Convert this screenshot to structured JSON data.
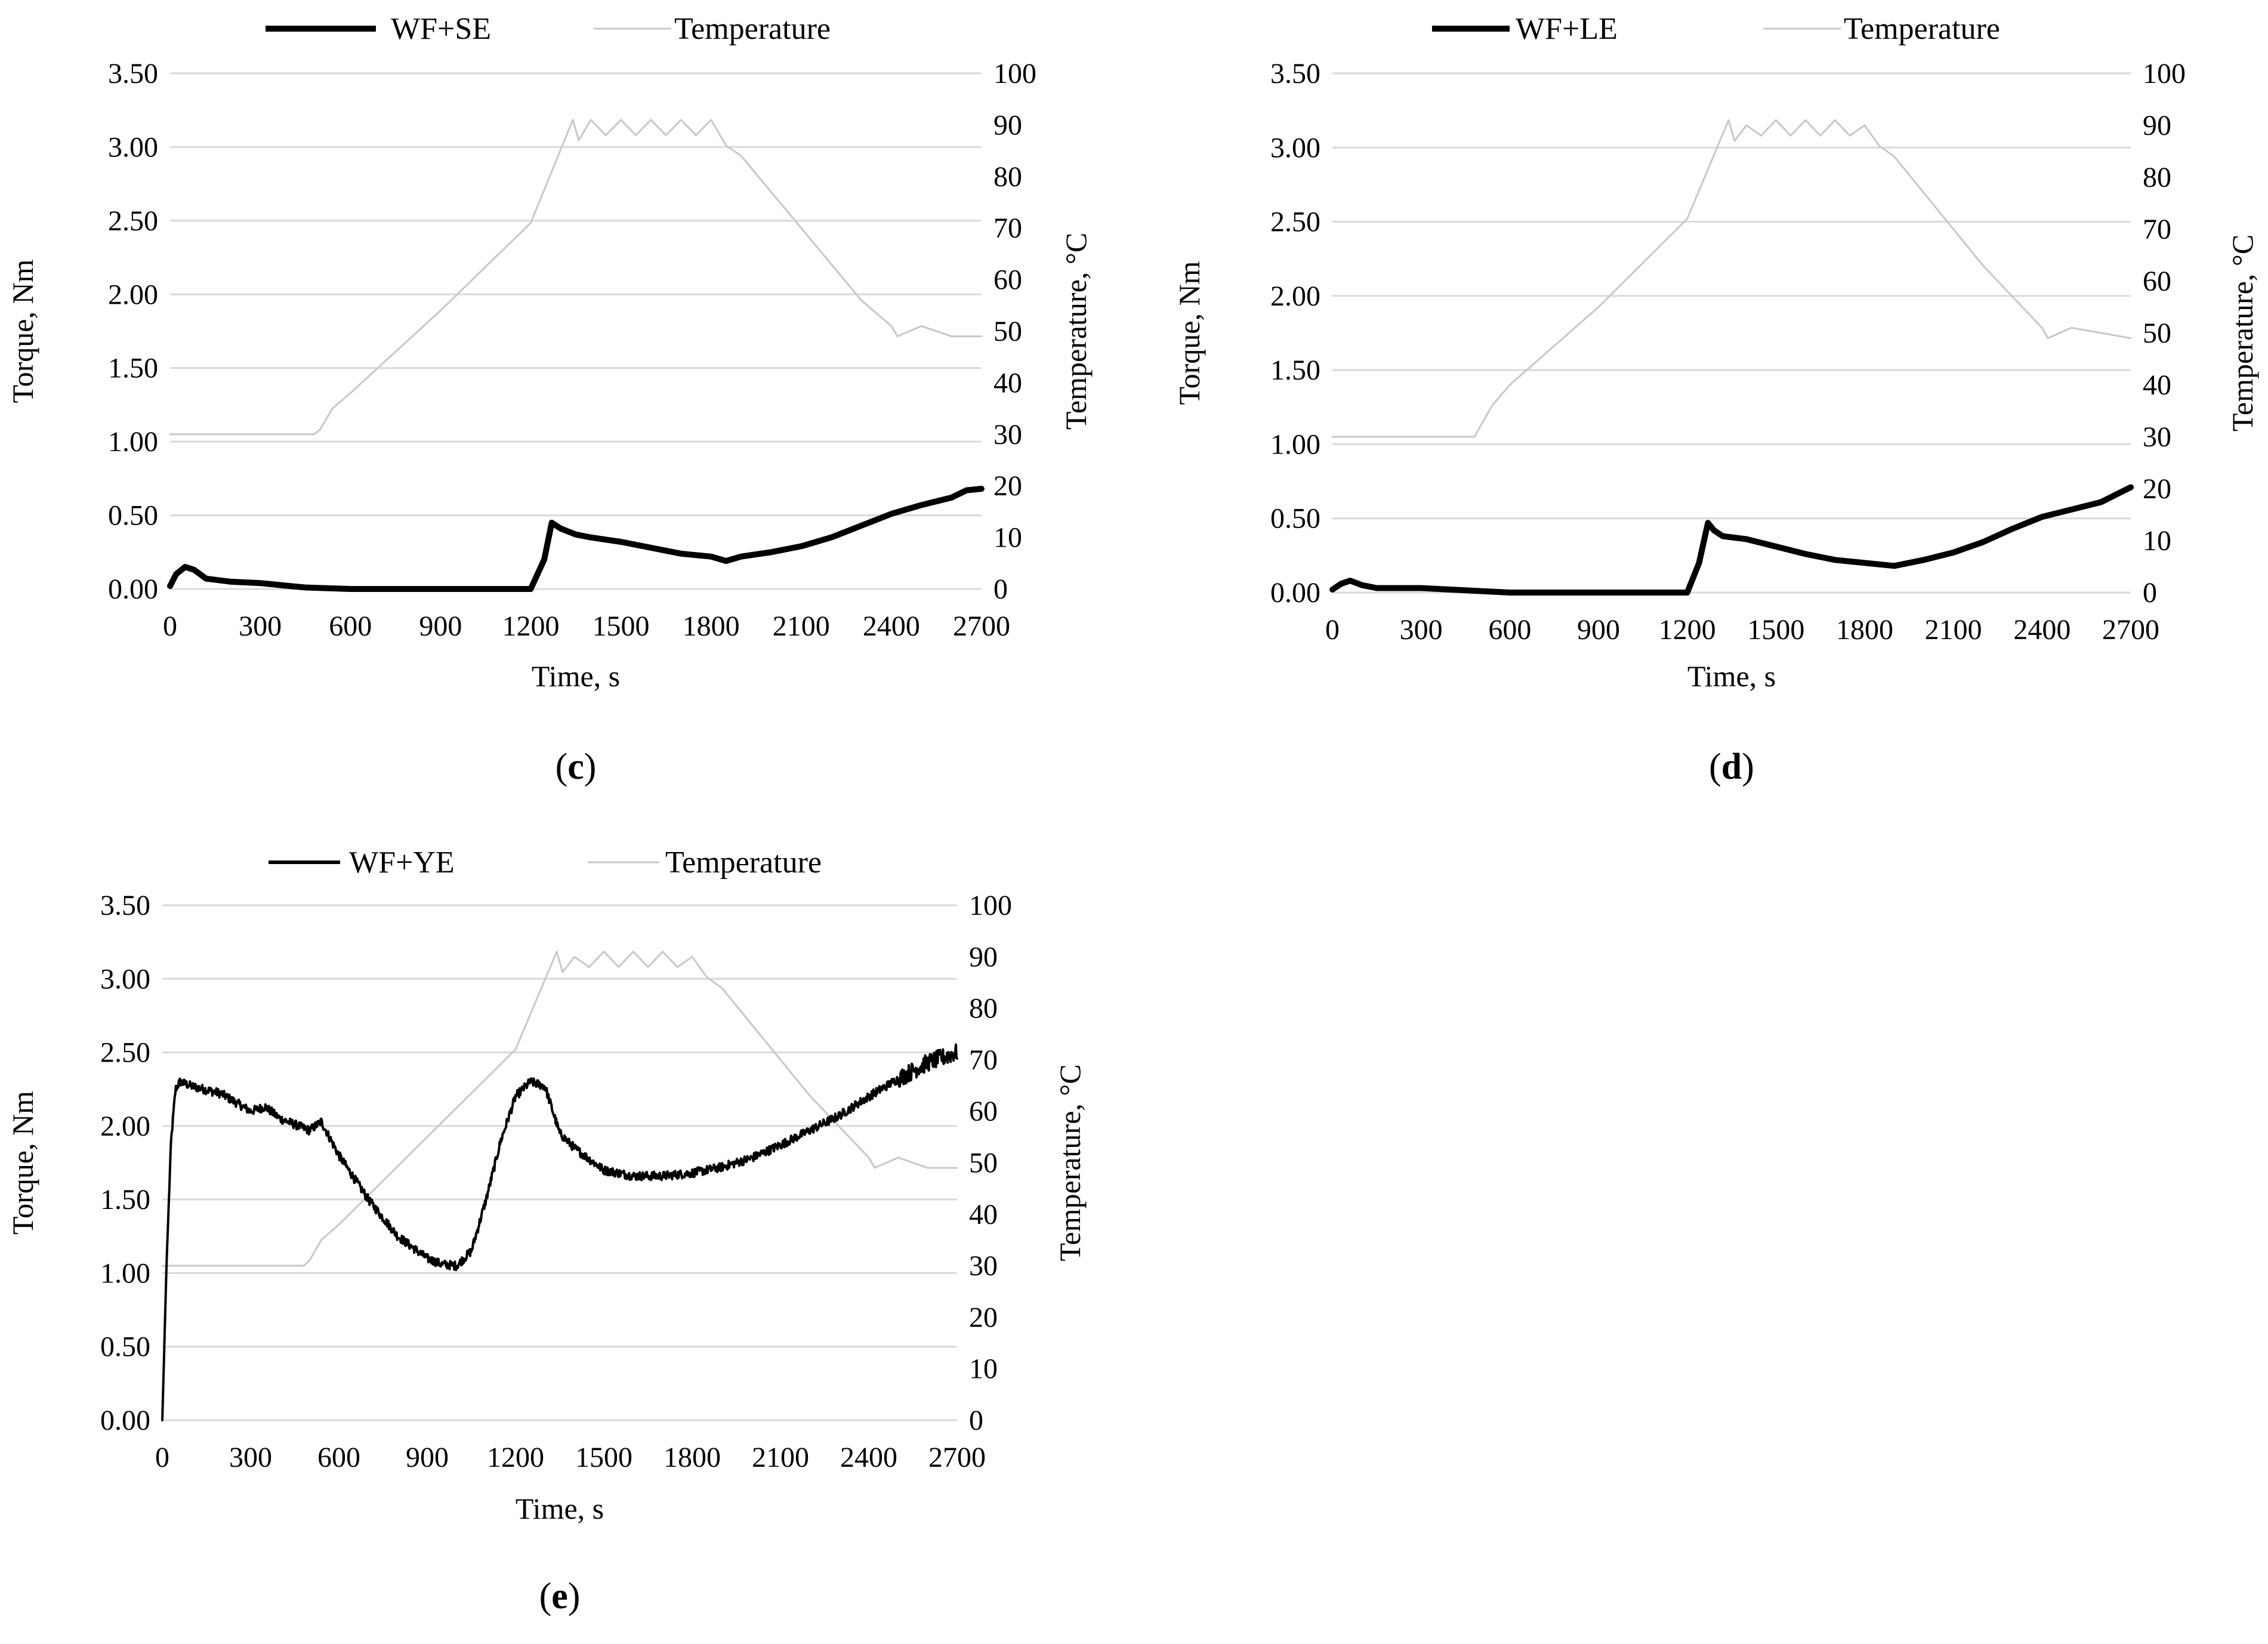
{
  "colors": {
    "torque": "#000000",
    "temperature": "#c8c8c8",
    "grid": "#d9d9d9"
  },
  "chart_data": [
    {
      "type": "line",
      "panel_label": "c",
      "title": "",
      "xlabel": "Time, s",
      "ylabel": "Torque, Nm",
      "y2label": "Temperature, °C",
      "xlim": [
        0,
        2700
      ],
      "ylim": [
        0,
        3.5
      ],
      "y2lim": [
        0,
        100
      ],
      "x_ticks": [
        "0",
        "300",
        "600",
        "900",
        "1200",
        "1500",
        "1800",
        "2100",
        "2400",
        "2700"
      ],
      "y_ticks": [
        "0.00",
        "0.50",
        "1.00",
        "1.50",
        "2.00",
        "2.50",
        "3.00",
        "3.50"
      ],
      "y2_ticks": [
        "0",
        "10",
        "20",
        "30",
        "40",
        "50",
        "60",
        "70",
        "80",
        "90",
        "100"
      ],
      "grid": "horizontal",
      "legend_position": "top-center",
      "series": [
        {
          "name": "WF+SE",
          "axis": "left",
          "style": "thick",
          "x": [
            0,
            20,
            50,
            80,
            120,
            200,
            300,
            400,
            450,
            600,
            900,
            1200,
            1245,
            1270,
            1300,
            1350,
            1400,
            1500,
            1600,
            1700,
            1800,
            1850,
            1900,
            2000,
            2100,
            2200,
            2300,
            2400,
            2500,
            2600,
            2650,
            2700
          ],
          "y": [
            0.02,
            0.1,
            0.15,
            0.13,
            0.07,
            0.05,
            0.04,
            0.02,
            0.01,
            0.0,
            0.0,
            0.0,
            0.2,
            0.45,
            0.41,
            0.37,
            0.35,
            0.32,
            0.28,
            0.24,
            0.22,
            0.19,
            0.22,
            0.25,
            0.29,
            0.35,
            0.43,
            0.51,
            0.57,
            0.62,
            0.67,
            0.68
          ]
        },
        {
          "name": "Temperature",
          "axis": "right",
          "style": "thin",
          "x": [
            0,
            100,
            200,
            300,
            400,
            480,
            500,
            540,
            600,
            900,
            1200,
            1340,
            1360,
            1400,
            1450,
            1500,
            1550,
            1600,
            1650,
            1700,
            1750,
            1800,
            1850,
            1900,
            2000,
            2100,
            2200,
            2300,
            2400,
            2420,
            2500,
            2600,
            2700
          ],
          "y": [
            30,
            30,
            30,
            30,
            30,
            30,
            31,
            35,
            38,
            54,
            71,
            91,
            87,
            91,
            88,
            91,
            88,
            91,
            88,
            91,
            88,
            91,
            86,
            84,
            77,
            70,
            63,
            56,
            51,
            49,
            51,
            49,
            49
          ]
        }
      ]
    },
    {
      "type": "line",
      "panel_label": "d",
      "title": "",
      "xlabel": "Time, s",
      "ylabel": "Torque, Nm",
      "y2label": "Temperature, °C",
      "xlim": [
        0,
        2700
      ],
      "ylim": [
        0,
        3.5
      ],
      "y2lim": [
        0,
        100
      ],
      "x_ticks": [
        "0",
        "300",
        "600",
        "900",
        "1200",
        "1500",
        "1800",
        "2100",
        "2400",
        "2700"
      ],
      "y_ticks": [
        "0.00",
        "0.50",
        "1.00",
        "1.50",
        "2.00",
        "2.50",
        "3.00",
        "3.50"
      ],
      "y2_ticks": [
        "0",
        "10",
        "20",
        "30",
        "40",
        "50",
        "60",
        "70",
        "80",
        "90",
        "100"
      ],
      "grid": "horizontal",
      "legend_position": "top-center",
      "series": [
        {
          "name": "WF+LE",
          "axis": "left",
          "style": "thick",
          "x": [
            0,
            30,
            60,
            100,
            150,
            300,
            400,
            500,
            600,
            900,
            1200,
            1240,
            1270,
            1290,
            1320,
            1400,
            1500,
            1600,
            1700,
            1800,
            1900,
            2000,
            2100,
            2200,
            2300,
            2400,
            2500,
            2600,
            2650,
            2700
          ],
          "y": [
            0.02,
            0.06,
            0.08,
            0.05,
            0.03,
            0.03,
            0.02,
            0.01,
            0.0,
            0.0,
            0.0,
            0.2,
            0.47,
            0.42,
            0.38,
            0.36,
            0.31,
            0.26,
            0.22,
            0.2,
            0.18,
            0.22,
            0.27,
            0.34,
            0.43,
            0.51,
            0.56,
            0.61,
            0.66,
            0.71
          ]
        },
        {
          "name": "Temperature",
          "axis": "right",
          "style": "thin",
          "x": [
            0,
            100,
            200,
            300,
            400,
            480,
            500,
            540,
            600,
            900,
            1200,
            1340,
            1360,
            1400,
            1450,
            1500,
            1550,
            1600,
            1650,
            1700,
            1750,
            1800,
            1850,
            1900,
            2000,
            2100,
            2200,
            2300,
            2400,
            2420,
            2500,
            2600,
            2700
          ],
          "y": [
            30,
            30,
            30,
            30,
            30,
            30,
            32,
            36,
            40,
            55,
            72,
            91,
            87,
            90,
            88,
            91,
            88,
            91,
            88,
            91,
            88,
            90,
            86,
            84,
            77,
            70,
            63,
            57,
            51,
            49,
            51,
            50,
            49
          ]
        }
      ]
    },
    {
      "type": "line",
      "panel_label": "e",
      "title": "",
      "xlabel": "Time, s",
      "ylabel": "Torque, Nm",
      "y2label": "Temperature, °C",
      "xlim": [
        0,
        2700
      ],
      "ylim": [
        0,
        3.5
      ],
      "y2lim": [
        0,
        100
      ],
      "x_ticks": [
        "0",
        "300",
        "600",
        "900",
        "1200",
        "1500",
        "1800",
        "2100",
        "2400",
        "2700"
      ],
      "y_ticks": [
        "0.00",
        "0.50",
        "1.00",
        "1.50",
        "2.00",
        "2.50",
        "3.00",
        "3.50"
      ],
      "y2_ticks": [
        "0",
        "10",
        "20",
        "30",
        "40",
        "50",
        "60",
        "70",
        "80",
        "90",
        "100"
      ],
      "grid": "horizontal",
      "legend_position": "top-center",
      "series": [
        {
          "name": "WF+YE",
          "axis": "left",
          "style": "noisy",
          "x": [
            0,
            15,
            30,
            45,
            60,
            100,
            200,
            300,
            350,
            400,
            500,
            540,
            600,
            700,
            800,
            900,
            950,
            1000,
            1050,
            1100,
            1150,
            1200,
            1250,
            1300,
            1350,
            1400,
            1500,
            1600,
            1700,
            1800,
            1900,
            2000,
            2100,
            2200,
            2300,
            2400,
            2500,
            2600,
            2700
          ],
          "y": [
            0.0,
            1.1,
            1.9,
            2.25,
            2.3,
            2.27,
            2.22,
            2.1,
            2.13,
            2.05,
            1.97,
            2.03,
            1.8,
            1.5,
            1.25,
            1.1,
            1.06,
            1.05,
            1.15,
            1.5,
            1.9,
            2.2,
            2.3,
            2.27,
            1.95,
            1.85,
            1.7,
            1.66,
            1.66,
            1.68,
            1.72,
            1.78,
            1.87,
            1.97,
            2.07,
            2.2,
            2.32,
            2.43,
            2.5
          ]
        },
        {
          "name": "Temperature",
          "axis": "right",
          "style": "thin",
          "x": [
            0,
            100,
            200,
            300,
            400,
            480,
            500,
            540,
            600,
            900,
            1200,
            1340,
            1360,
            1400,
            1450,
            1500,
            1550,
            1600,
            1650,
            1700,
            1750,
            1800,
            1850,
            1900,
            2000,
            2100,
            2200,
            2300,
            2400,
            2420,
            2500,
            2600,
            2700
          ],
          "y": [
            30,
            30,
            30,
            30,
            30,
            30,
            31,
            35,
            38,
            55,
            72,
            91,
            87,
            90,
            88,
            91,
            88,
            91,
            88,
            91,
            88,
            90,
            86,
            84,
            77,
            70,
            63,
            57,
            51,
            49,
            51,
            49,
            49
          ]
        }
      ]
    }
  ]
}
